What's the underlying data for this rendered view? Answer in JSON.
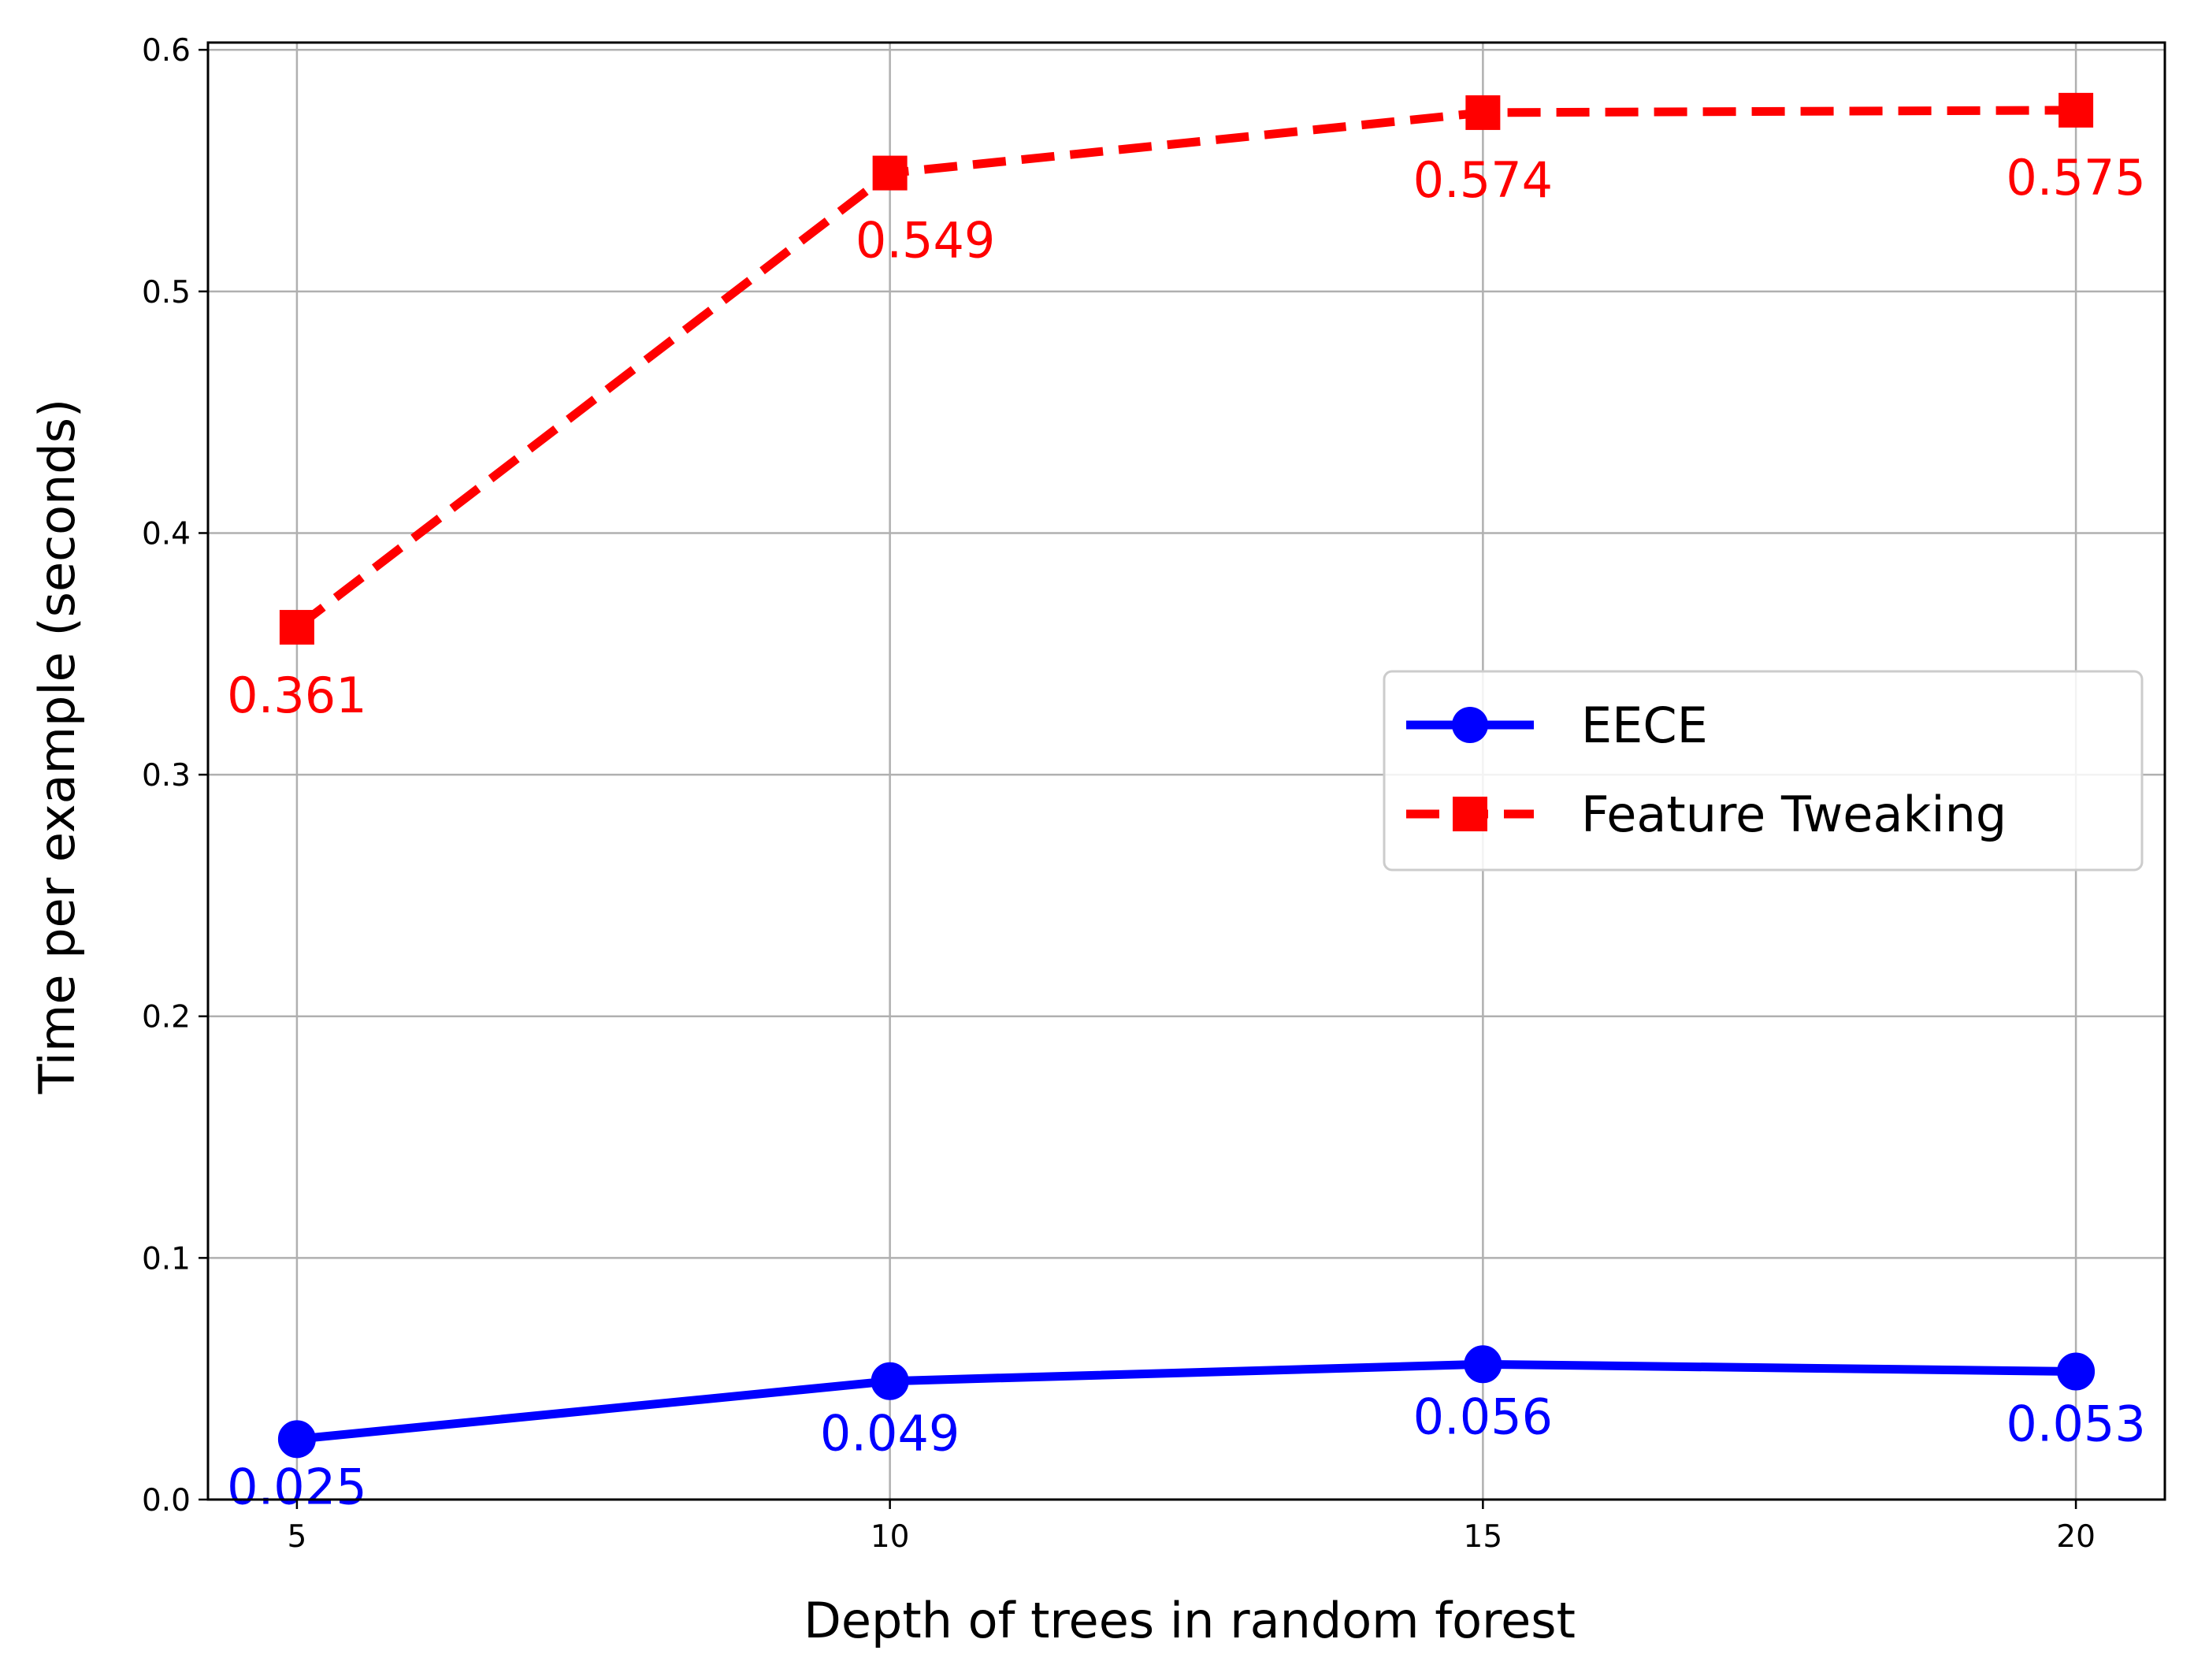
{
  "chart_data": {
    "type": "line",
    "title": "",
    "xlabel": "Depth of trees in random forest",
    "ylabel": "Time per example (seconds)",
    "x": [
      5,
      10,
      15,
      20
    ],
    "x_ticks": [
      "5",
      "10",
      "15",
      "20"
    ],
    "y_ticks": [
      "0.0",
      "0.1",
      "0.2",
      "0.3",
      "0.4",
      "0.5",
      "0.6"
    ],
    "xlim": [
      4.25,
      20.75
    ],
    "ylim": [
      0.0,
      0.603
    ],
    "grid": true,
    "legend_position": "center-right",
    "series": [
      {
        "name": "EECE",
        "values": [
          0.025,
          0.049,
          0.056,
          0.053
        ],
        "labels": [
          "0.025",
          "0.049",
          "0.056",
          "0.053"
        ],
        "color": "#0000ff",
        "line_style": "solid",
        "marker": "circle"
      },
      {
        "name": "Feature Tweaking",
        "values": [
          0.361,
          0.549,
          0.574,
          0.575
        ],
        "labels": [
          "0.361",
          "0.549",
          "0.574",
          "0.575"
        ],
        "color": "#ff0000",
        "line_style": "dashed",
        "marker": "square"
      }
    ]
  }
}
